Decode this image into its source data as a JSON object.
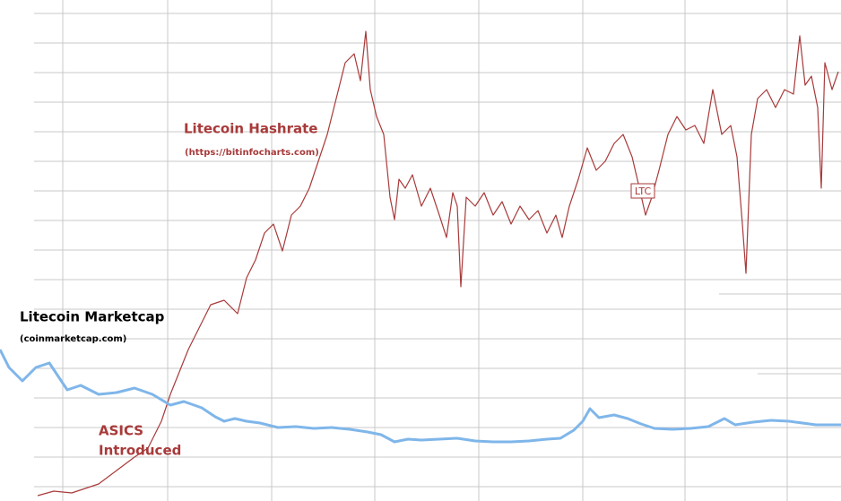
{
  "chart_data": {
    "type": "line",
    "xlim": [
      0,
      93.8
    ],
    "ylim": [
      0,
      55.9
    ],
    "xticks": [
      7,
      18.7,
      30.3,
      41.8,
      53.4,
      65,
      76.4,
      87.8
    ],
    "yticks": [
      1.6,
      4.9,
      8.2,
      11.5,
      14.8,
      18.1,
      21.4,
      24.7,
      28,
      31.3,
      34.6,
      37.9,
      41.2,
      44.5,
      47.8,
      51.1,
      54.4
    ],
    "grid": true,
    "series": [
      {
        "name": "Litecoin Hashrate",
        "color": "#a83a3a",
        "x": [
          4.2,
          6,
          8,
          9.5,
          11,
          13,
          15,
          16.5,
          18,
          19,
          20,
          21,
          22,
          23.5,
          25,
          26.5,
          27.5,
          28.5,
          29.5,
          30.5,
          31.5,
          32.5,
          33.5,
          34.5,
          35.5,
          36.5,
          37.5,
          38.5,
          39.5,
          40.2,
          40.8,
          41.3,
          42,
          42.8,
          43.5,
          44,
          44.5,
          45.2,
          46,
          47,
          48,
          49,
          49.8,
          50.5,
          51,
          51.4,
          52,
          53,
          54,
          55,
          56,
          57,
          58,
          59,
          60,
          61,
          62,
          62.7,
          63.5,
          64.5,
          65.5,
          66.5,
          67.5,
          68.5,
          69.5,
          70.5,
          71.2,
          72,
          72.7,
          73.5,
          74.5,
          75.5,
          76.5,
          77.5,
          78.5,
          79.5,
          80.5,
          81.5,
          82.2,
          82.8,
          83.2,
          83.8,
          84.5,
          85.5,
          86.5,
          87.5,
          88.5,
          89.2,
          89.8,
          90.5,
          91.2,
          91.6,
          92,
          92.8,
          93.5
        ],
        "values": [
          0.6,
          1.1,
          0.9,
          1.4,
          1.9,
          3.4,
          4.9,
          5.9,
          8.9,
          11.9,
          14.4,
          16.9,
          18.9,
          21.9,
          22.4,
          20.9,
          24.9,
          26.9,
          29.9,
          30.9,
          27.9,
          31.9,
          32.9,
          34.9,
          37.9,
          40.9,
          44.9,
          48.9,
          49.9,
          46.9,
          52.4,
          45.9,
          42.9,
          40.9,
          33.9,
          31.4,
          35.9,
          34.9,
          36.4,
          32.9,
          34.9,
          31.9,
          29.4,
          34.4,
          32.9,
          23.9,
          33.9,
          32.9,
          34.4,
          31.9,
          33.4,
          30.9,
          32.9,
          31.4,
          32.4,
          29.9,
          31.9,
          29.4,
          32.9,
          35.9,
          39.4,
          36.9,
          37.9,
          39.9,
          40.9,
          38.4,
          35.4,
          31.9,
          33.9,
          36.9,
          40.9,
          42.9,
          41.4,
          41.9,
          39.9,
          45.9,
          40.9,
          41.9,
          38.4,
          30.9,
          25.4,
          40.9,
          44.9,
          45.9,
          43.9,
          45.9,
          45.4,
          51.9,
          46.4,
          47.4,
          43.9,
          34.9,
          48.9,
          45.9,
          47.9
        ]
      },
      {
        "name": "Litecoin Marketcap",
        "color": "#7fb6ea",
        "x": [
          0,
          1,
          2.5,
          4,
          5.5,
          6.5,
          7.5,
          9,
          11,
          13,
          15,
          17,
          19,
          20.5,
          22.5,
          24,
          25,
          26.2,
          27.5,
          29,
          31,
          33,
          35,
          37,
          39,
          41,
          42.5,
          44,
          45.5,
          47,
          49,
          51,
          53,
          55,
          57,
          59,
          61,
          62.5,
          64,
          65,
          65.8,
          66.8,
          68.5,
          70,
          71.5,
          73,
          75,
          77,
          79,
          80.8,
          82,
          84,
          86,
          88,
          91,
          93.8
        ],
        "values": [
          16.9,
          14.9,
          13.4,
          14.9,
          15.4,
          13.9,
          12.4,
          12.9,
          11.9,
          12.1,
          12.6,
          11.9,
          10.7,
          11.1,
          10.4,
          9.4,
          8.9,
          9.2,
          8.9,
          8.7,
          8.2,
          8.3,
          8.1,
          8.2,
          8.0,
          7.7,
          7.4,
          6.6,
          6.9,
          6.8,
          6.9,
          7.0,
          6.7,
          6.6,
          6.6,
          6.7,
          6.9,
          7.0,
          7.9,
          8.9,
          10.3,
          9.3,
          9.6,
          9.2,
          8.6,
          8.1,
          8.0,
          8.1,
          8.3,
          9.2,
          8.5,
          8.8,
          9.0,
          8.9,
          8.5,
          8.5
        ]
      }
    ],
    "annotations": [
      "(https://bitinfocharts.com)",
      "(coinmarketcap.com)",
      "ASICS",
      "Introduced",
      "LTC"
    ]
  }
}
